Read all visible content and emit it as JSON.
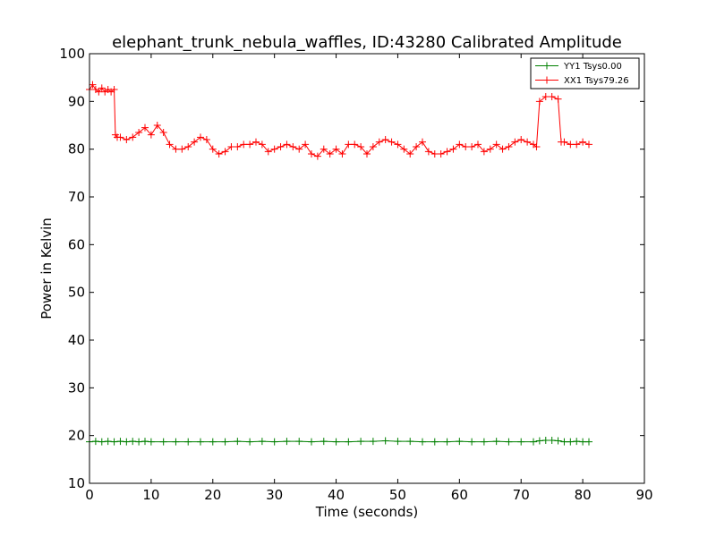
{
  "chart_data": {
    "type": "line",
    "title": "elephant_trunk_nebula_waffles, ID:43280 Calibrated Amplitude",
    "xlabel": "Time (seconds)",
    "ylabel": "Power in Kelvin",
    "xlim": [
      0,
      90
    ],
    "ylim": [
      10,
      100
    ],
    "xticks": [
      "0",
      "10",
      "20",
      "30",
      "40",
      "50",
      "60",
      "70",
      "80",
      "90"
    ],
    "yticks": [
      "10",
      "20",
      "30",
      "40",
      "50",
      "60",
      "70",
      "80",
      "90",
      "100"
    ],
    "grid": false,
    "legend_position": "top-right",
    "marker": "plus",
    "series": [
      {
        "name": "YY1 Tsys0.00",
        "color": "#008000",
        "x": [
          0,
          1,
          2,
          3,
          4,
          5,
          6,
          7,
          8,
          9,
          10,
          12,
          14,
          16,
          18,
          20,
          22,
          24,
          26,
          28,
          30,
          32,
          34,
          36,
          38,
          40,
          42,
          44,
          46,
          48,
          50,
          52,
          54,
          56,
          58,
          60,
          62,
          64,
          66,
          68,
          70,
          72,
          73,
          74,
          75,
          76,
          77,
          78,
          79,
          80,
          81
        ],
        "values": [
          18.7,
          18.8,
          18.7,
          18.8,
          18.7,
          18.8,
          18.7,
          18.8,
          18.7,
          18.8,
          18.7,
          18.7,
          18.7,
          18.7,
          18.7,
          18.7,
          18.7,
          18.8,
          18.7,
          18.8,
          18.7,
          18.8,
          18.8,
          18.7,
          18.8,
          18.7,
          18.7,
          18.8,
          18.8,
          18.9,
          18.8,
          18.8,
          18.7,
          18.7,
          18.7,
          18.8,
          18.7,
          18.7,
          18.8,
          18.7,
          18.7,
          18.7,
          18.9,
          19.0,
          19.0,
          18.9,
          18.7,
          18.7,
          18.8,
          18.7,
          18.7
        ]
      },
      {
        "name": "XX1 Tsys79.26",
        "color": "#ff0000",
        "x": [
          0,
          0.5,
          1,
          1.5,
          2,
          2.5,
          3,
          3.5,
          4,
          4.2,
          4.5,
          5,
          6,
          7,
          8,
          9,
          10,
          11,
          12,
          13,
          14,
          15,
          16,
          17,
          18,
          19,
          20,
          21,
          22,
          23,
          24,
          25,
          26,
          27,
          28,
          29,
          30,
          31,
          32,
          33,
          34,
          35,
          36,
          37,
          38,
          39,
          40,
          41,
          42,
          43,
          44,
          45,
          46,
          47,
          48,
          49,
          50,
          51,
          52,
          53,
          54,
          55,
          56,
          57,
          58,
          59,
          60,
          61,
          62,
          63,
          64,
          65,
          66,
          67,
          68,
          69,
          70,
          71,
          72,
          72.5,
          73,
          74,
          75,
          76,
          76.5,
          77,
          78,
          79,
          80,
          81
        ],
        "values": [
          92.5,
          93.5,
          92.5,
          92.0,
          92.8,
          92.0,
          92.5,
          92.0,
          92.5,
          83.0,
          82.5,
          82.5,
          82.0,
          82.5,
          83.5,
          84.5,
          83.0,
          85.0,
          83.5,
          81.0,
          80.0,
          80.0,
          80.5,
          81.5,
          82.5,
          82.0,
          80.0,
          79.0,
          79.5,
          80.5,
          80.5,
          81.0,
          81.0,
          81.5,
          81.0,
          79.5,
          80.0,
          80.5,
          81.0,
          80.5,
          80.0,
          81.0,
          79.0,
          78.5,
          80.0,
          79.0,
          80.0,
          79.0,
          81.0,
          81.0,
          80.5,
          79.0,
          80.5,
          81.5,
          82.0,
          81.5,
          81.0,
          80.0,
          79.0,
          80.5,
          81.5,
          79.5,
          79.0,
          79.0,
          79.5,
          80.0,
          81.0,
          80.5,
          80.5,
          81.0,
          79.5,
          80.0,
          81.0,
          80.0,
          80.5,
          81.5,
          82.0,
          81.5,
          81.0,
          80.5,
          90.0,
          91.0,
          91.0,
          90.5,
          81.5,
          81.5,
          81.0,
          81.0,
          81.5,
          81.0
        ]
      }
    ]
  }
}
